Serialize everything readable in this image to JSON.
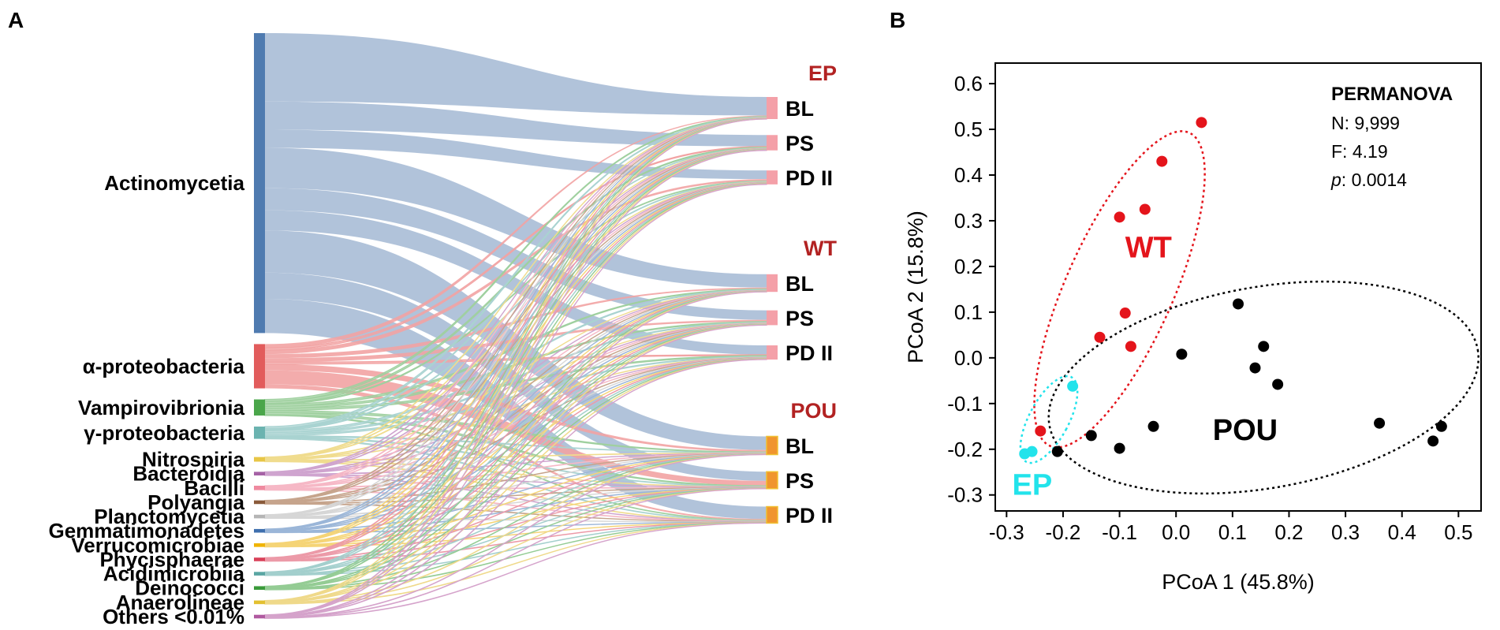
{
  "panels": {
    "a": "A",
    "b": "B"
  },
  "colors": {
    "ep": "#b22222",
    "wt": "#e4272b",
    "pou": "#000000",
    "ep_points": "#22e3eb"
  },
  "chart_data": [
    {
      "type": "sankey",
      "panel": "A",
      "sources": [
        {
          "name": "Actinomycetia",
          "color": "#4f7bb0",
          "flow_color": "#a9bdd6",
          "weights": [
            34,
            14,
            9,
            20,
            11,
            10,
            21,
            13,
            17
          ]
        },
        {
          "name": "α-proteobacteria",
          "color": "#e25c5c",
          "flow_color": "#f2a3a3",
          "weights": [
            2,
            1,
            2,
            2,
            2,
            1,
            3,
            7,
            2
          ]
        },
        {
          "name": "Vampirovibrionia",
          "color": "#4aa64a",
          "flow_color": "#9fd09f",
          "weights": [
            1,
            1,
            0.5,
            1,
            1,
            1,
            1,
            1,
            0.5
          ]
        },
        {
          "name": "γ-proteobacteria",
          "color": "#6bb3b0",
          "flow_color": "#a9d3d1",
          "weights": [
            1,
            0.5,
            0.5,
            1,
            0.8,
            0.8,
            0.5,
            0.5,
            0.5
          ]
        },
        {
          "name": "Nitrospiria",
          "color": "#e8c646",
          "flow_color": "#f0dc8e",
          "weights": [
            0.3,
            0.2,
            0.3,
            0.2,
            0.2,
            0.2,
            0.3,
            0.3,
            0.3
          ]
        },
        {
          "name": "Bacteroidia",
          "color": "#a561a5",
          "flow_color": "#cfa4cf",
          "weights": [
            0.2,
            0.2,
            0.2,
            0.2,
            0.2,
            0.2,
            0.2,
            0.2,
            0.2
          ]
        },
        {
          "name": "Bacilli",
          "color": "#ef8aa0",
          "flow_color": "#f6b8c6",
          "weights": [
            0.3,
            0.2,
            0.2,
            0.2,
            0.2,
            0.2,
            0.3,
            0.3,
            0.3
          ]
        },
        {
          "name": "Polyangia",
          "color": "#8a5a3a",
          "flow_color": "#c6a48c",
          "weights": [
            0.2,
            0.2,
            0.2,
            0.2,
            0.2,
            0.2,
            0.2,
            0.2,
            0.2
          ]
        },
        {
          "name": "Planctomycetia",
          "color": "#b5b5b5",
          "flow_color": "#d6d6d6",
          "weights": [
            0.2,
            0.2,
            0.2,
            0.2,
            0.2,
            0.2,
            0.2,
            0.2,
            0.2
          ]
        },
        {
          "name": "Gemmatimonadetes",
          "color": "#3f6fae",
          "flow_color": "#9bb6d8",
          "weights": [
            0.2,
            0.2,
            0.2,
            0.2,
            0.2,
            0.2,
            0.2,
            0.2,
            0.2
          ]
        },
        {
          "name": "Verrucomicrobiae",
          "color": "#f0b400",
          "flow_color": "#f5d476",
          "weights": [
            0.2,
            0.2,
            0.2,
            0.2,
            0.2,
            0.2,
            0.2,
            0.2,
            0.2
          ]
        },
        {
          "name": "Phycisphaerae",
          "color": "#d9415a",
          "flow_color": "#ec9aa8",
          "weights": [
            0.2,
            0.2,
            0.2,
            0.2,
            0.2,
            0.2,
            0.2,
            0.2,
            0.2
          ]
        },
        {
          "name": "Acidimicrobiia",
          "color": "#5aa6a3",
          "flow_color": "#a3cfcd",
          "weights": [
            0.2,
            0.2,
            0.2,
            0.2,
            0.2,
            0.2,
            0.2,
            0.2,
            0.2
          ]
        },
        {
          "name": "Deinococci",
          "color": "#3a9a3a",
          "flow_color": "#94cc94",
          "weights": [
            0.2,
            0.2,
            0.2,
            0.2,
            0.2,
            0.2,
            0.2,
            0.2,
            0.2
          ]
        },
        {
          "name": "Anaerolineae",
          "color": "#e3c030",
          "flow_color": "#efd98a",
          "weights": [
            0.2,
            0.2,
            0.2,
            0.2,
            0.2,
            0.2,
            0.2,
            0.2,
            0.2
          ]
        },
        {
          "name": "Others <0.01%",
          "color": "#b05aa0",
          "flow_color": "#d5a3cb",
          "weights": [
            0.2,
            0.2,
            0.2,
            0.2,
            0.2,
            0.2,
            0.2,
            0.2,
            0.2
          ]
        }
      ],
      "groups": [
        {
          "name": "EP",
          "node_color": "#f4a0a8",
          "targets": [
            "BL",
            "PS",
            "PD II"
          ]
        },
        {
          "name": "WT",
          "node_color": "#f4a0a8",
          "targets": [
            "BL",
            "PS",
            "PD II"
          ]
        },
        {
          "name": "POU",
          "node_color": "#f0952e",
          "targets": [
            "BL",
            "PS",
            "PD II"
          ]
        }
      ]
    },
    {
      "type": "scatter",
      "panel": "B",
      "xlabel": "PCoA 1 (45.8%)",
      "ylabel": "PCoA 2 (15.8%)",
      "xlim": [
        -0.32,
        0.54
      ],
      "ylim": [
        -0.335,
        0.645
      ],
      "xticks": [
        -0.3,
        -0.2,
        -0.1,
        0.0,
        0.1,
        0.2,
        0.3,
        0.4,
        0.5
      ],
      "xtick_labels": [
        "-0.3",
        "-0.2",
        "-0.1",
        "0.0",
        "0.1",
        "0.2",
        "0.3",
        "0.4",
        "0.5"
      ],
      "yticks": [
        0.6,
        0.5,
        0.4,
        0.3,
        0.2,
        0.1,
        0.0,
        -0.1,
        -0.2,
        -0.3
      ],
      "ytick_labels": [
        "0.6",
        "0.5",
        "0.4",
        "0.3",
        "0.2",
        "0.1",
        "0.0",
        "-0.1",
        "-0.2",
        "-0.3"
      ],
      "series": [
        {
          "name": "WT",
          "color": "#e4141b",
          "label_point": [
            -0.09,
            0.22
          ],
          "points": [
            [
              0.045,
              0.515
            ],
            [
              -0.025,
              0.43
            ],
            [
              -0.055,
              0.325
            ],
            [
              -0.1,
              0.308
            ],
            [
              -0.09,
              0.098
            ],
            [
              -0.135,
              0.045
            ],
            [
              -0.08,
              0.025
            ],
            [
              -0.24,
              -0.16
            ]
          ],
          "ellipse": {
            "cx": -0.1,
            "cy": 0.15,
            "rx": 0.095,
            "ry": 0.375,
            "angle": 24
          }
        },
        {
          "name": "POU",
          "color": "#000000",
          "label_point": [
            0.065,
            -0.18
          ],
          "points": [
            [
              0.11,
              0.118
            ],
            [
              0.155,
              0.025
            ],
            [
              0.01,
              0.008
            ],
            [
              0.14,
              -0.022
            ],
            [
              0.18,
              -0.058
            ],
            [
              -0.04,
              -0.15
            ],
            [
              -0.15,
              -0.17
            ],
            [
              -0.1,
              -0.198
            ],
            [
              -0.21,
              -0.205
            ],
            [
              0.36,
              -0.143
            ],
            [
              0.47,
              -0.15
            ],
            [
              0.455,
              -0.182
            ]
          ],
          "ellipse": {
            "cx": 0.155,
            "cy": -0.065,
            "rx": 0.385,
            "ry": 0.22,
            "angle": -10
          }
        },
        {
          "name": "EP",
          "color": "#22e3eb",
          "label_point": [
            -0.29,
            -0.3
          ],
          "points": [
            [
              -0.183,
              -0.062
            ],
            [
              -0.255,
              -0.205
            ],
            [
              -0.268,
              -0.21
            ]
          ],
          "ellipse": {
            "cx": -0.225,
            "cy": -0.135,
            "rx": 0.035,
            "ry": 0.105,
            "angle": 28
          }
        }
      ],
      "permanova": {
        "title": "PERMANOVA",
        "n_label": "N: ",
        "n_value": "9,999",
        "f_label": "F: ",
        "f_value": "4.19",
        "p_label": "p",
        "p_value": ": 0.0014"
      }
    }
  ]
}
